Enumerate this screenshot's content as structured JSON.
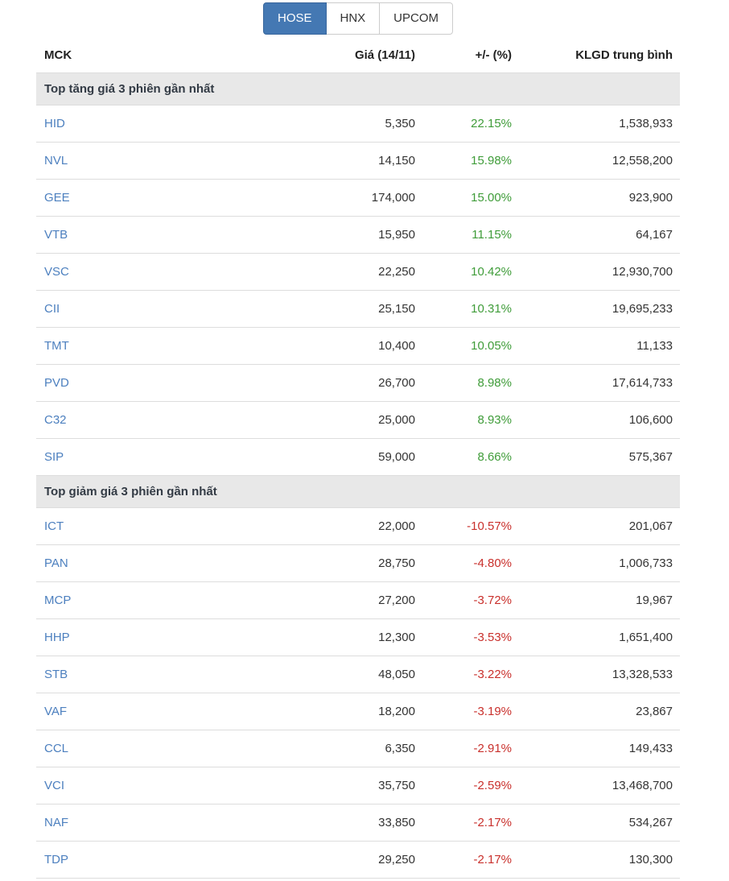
{
  "colors": {
    "accent": "#4478b3",
    "accent_border": "#39679d",
    "tab_border": "#cccccc",
    "positive": "#3f9c39",
    "negative": "#c9302c",
    "link": "#4d80bf",
    "section_bg": "#e8e8e8",
    "section_text": "#333b45",
    "row_border": "#dddddd",
    "text": "#333333"
  },
  "tabs": [
    {
      "label": "HOSE",
      "active": true
    },
    {
      "label": "HNX",
      "active": false
    },
    {
      "label": "UPCOM",
      "active": false
    }
  ],
  "table": {
    "columns": [
      "MCK",
      "Giá (14/11)",
      "+/- (%)",
      "KLGD trung bình"
    ],
    "sections": [
      {
        "title": "Top tăng giá 3 phiên gần nhất",
        "direction": "up",
        "rows": [
          {
            "ticker": "HID",
            "price": "5,350",
            "change": "22.15%",
            "volume": "1,538,933"
          },
          {
            "ticker": "NVL",
            "price": "14,150",
            "change": "15.98%",
            "volume": "12,558,200"
          },
          {
            "ticker": "GEE",
            "price": "174,000",
            "change": "15.00%",
            "volume": "923,900"
          },
          {
            "ticker": "VTB",
            "price": "15,950",
            "change": "11.15%",
            "volume": "64,167"
          },
          {
            "ticker": "VSC",
            "price": "22,250",
            "change": "10.42%",
            "volume": "12,930,700"
          },
          {
            "ticker": "CII",
            "price": "25,150",
            "change": "10.31%",
            "volume": "19,695,233"
          },
          {
            "ticker": "TMT",
            "price": "10,400",
            "change": "10.05%",
            "volume": "11,133"
          },
          {
            "ticker": "PVD",
            "price": "26,700",
            "change": "8.98%",
            "volume": "17,614,733"
          },
          {
            "ticker": "C32",
            "price": "25,000",
            "change": "8.93%",
            "volume": "106,600"
          },
          {
            "ticker": "SIP",
            "price": "59,000",
            "change": "8.66%",
            "volume": "575,367"
          }
        ]
      },
      {
        "title": "Top giảm giá 3 phiên gần nhất",
        "direction": "down",
        "rows": [
          {
            "ticker": "ICT",
            "price": "22,000",
            "change": "-10.57%",
            "volume": "201,067"
          },
          {
            "ticker": "PAN",
            "price": "28,750",
            "change": "-4.80%",
            "volume": "1,006,733"
          },
          {
            "ticker": "MCP",
            "price": "27,200",
            "change": "-3.72%",
            "volume": "19,967"
          },
          {
            "ticker": "HHP",
            "price": "12,300",
            "change": "-3.53%",
            "volume": "1,651,400"
          },
          {
            "ticker": "STB",
            "price": "48,050",
            "change": "-3.22%",
            "volume": "13,328,533"
          },
          {
            "ticker": "VAF",
            "price": "18,200",
            "change": "-3.19%",
            "volume": "23,867"
          },
          {
            "ticker": "CCL",
            "price": "6,350",
            "change": "-2.91%",
            "volume": "149,433"
          },
          {
            "ticker": "VCI",
            "price": "35,750",
            "change": "-2.59%",
            "volume": "13,468,700"
          },
          {
            "ticker": "NAF",
            "price": "33,850",
            "change": "-2.17%",
            "volume": "534,267"
          },
          {
            "ticker": "TDP",
            "price": "29,250",
            "change": "-2.17%",
            "volume": "130,300"
          }
        ]
      }
    ]
  }
}
